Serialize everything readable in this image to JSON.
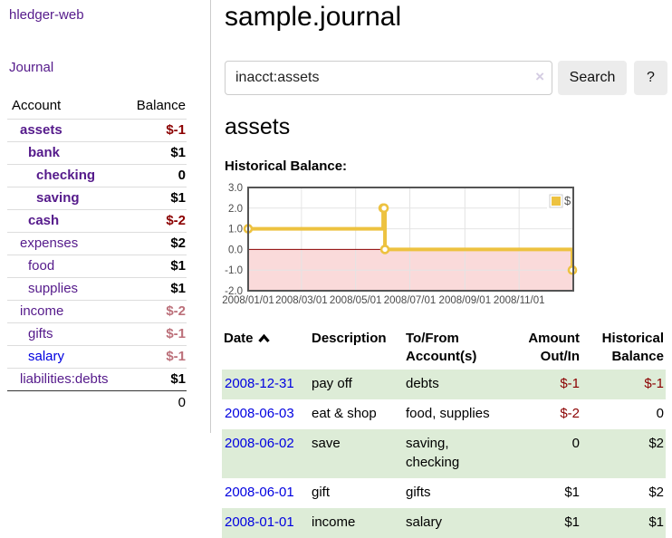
{
  "app": {
    "brand": "hledger-web"
  },
  "sidebar": {
    "nav_journal": "Journal",
    "accounts_table": {
      "headers": {
        "account": "Account",
        "balance": "Balance"
      },
      "rows": [
        {
          "name": "assets",
          "balance": "$-1",
          "indent": 1,
          "bold": true,
          "balance_style": "neg-strong"
        },
        {
          "name": "bank",
          "balance": "$1",
          "indent": 2,
          "bold": true,
          "balance_style": "pos"
        },
        {
          "name": "checking",
          "balance": "0",
          "indent": 3,
          "bold": true,
          "balance_style": "pos"
        },
        {
          "name": "saving",
          "balance": "$1",
          "indent": 3,
          "bold": true,
          "balance_style": "pos"
        },
        {
          "name": "cash",
          "balance": "$-2",
          "indent": 2,
          "bold": true,
          "balance_style": "neg-strong"
        },
        {
          "name": "expenses",
          "balance": "$2",
          "indent": 1,
          "bold": false,
          "balance_style": "pos"
        },
        {
          "name": "food",
          "balance": "$1",
          "indent": 2,
          "bold": false,
          "balance_style": "pos"
        },
        {
          "name": "supplies",
          "balance": "$1",
          "indent": 2,
          "bold": false,
          "balance_style": "pos"
        },
        {
          "name": "income",
          "balance": "$-2",
          "indent": 1,
          "bold": false,
          "balance_style": "neg-soft"
        },
        {
          "name": "gifts",
          "balance": "$-1",
          "indent": 2,
          "bold": false,
          "balance_style": "neg-soft"
        },
        {
          "name": "salary",
          "balance": "$-1",
          "indent": 2,
          "bold": false,
          "balance_style": "neg-soft",
          "link_color": "blue"
        },
        {
          "name": "liabilities:debts",
          "balance": "$1",
          "indent": 1,
          "bold": false,
          "balance_style": "pos"
        }
      ],
      "total": "0"
    }
  },
  "header": {
    "title": "sample.journal"
  },
  "search": {
    "value": "inacct:assets",
    "clear_icon": "×",
    "button": "Search",
    "help_button": "?"
  },
  "account_page": {
    "heading": "assets",
    "chart_label": "Historical Balance:"
  },
  "chart_data": {
    "type": "line",
    "style": "step-after",
    "title": "Historical Balance",
    "x_start": "2008-01-01",
    "x_span_days": 366,
    "ylim": [
      -2,
      3
    ],
    "yticks": [
      3.0,
      2.0,
      1.0,
      0.0,
      -1.0,
      -2.0
    ],
    "xticks": [
      "2008/01/01",
      "2008/03/01",
      "2008/05/01",
      "2008/07/01",
      "2008/09/01",
      "2008/11/01"
    ],
    "grid": true,
    "legend": {
      "label": "$",
      "position": "top-right"
    },
    "series": [
      {
        "name": "$",
        "color": "#edc240",
        "points": [
          [
            "2008-01-01",
            1
          ],
          [
            "2008-06-01",
            2
          ],
          [
            "2008-06-02",
            2
          ],
          [
            "2008-06-03",
            0
          ],
          [
            "2008-12-31",
            -1
          ]
        ]
      }
    ],
    "colors": {
      "negative_region_fill": "#fadada",
      "zero_line": "#8b0000",
      "gridline": "#e4e4e4",
      "plot_border": "#545454",
      "tick_text": "#4a4a4a",
      "marker_fill": "#ffffff"
    }
  },
  "transactions": {
    "columns": [
      {
        "label": "Date",
        "sorted": "asc"
      },
      {
        "label": "Description"
      },
      {
        "label": "To/From Account(s)"
      },
      {
        "label": "Amount Out/In"
      },
      {
        "label": "Historical Balance"
      }
    ],
    "rows": [
      {
        "date": "2008-12-31",
        "description": "pay off",
        "accounts": "debts",
        "amount": "$-1",
        "balance": "$-1"
      },
      {
        "date": "2008-06-03",
        "description": "eat & shop",
        "accounts": "food, supplies",
        "amount": "$-2",
        "balance": "0"
      },
      {
        "date": "2008-06-02",
        "description": "save",
        "accounts": "saving, checking",
        "amount": "0",
        "balance": "$2"
      },
      {
        "date": "2008-06-01",
        "description": "gift",
        "accounts": "gifts",
        "amount": "$1",
        "balance": "$2"
      },
      {
        "date": "2008-01-01",
        "description": "income",
        "accounts": "salary",
        "amount": "$1",
        "balance": "$1"
      }
    ]
  }
}
